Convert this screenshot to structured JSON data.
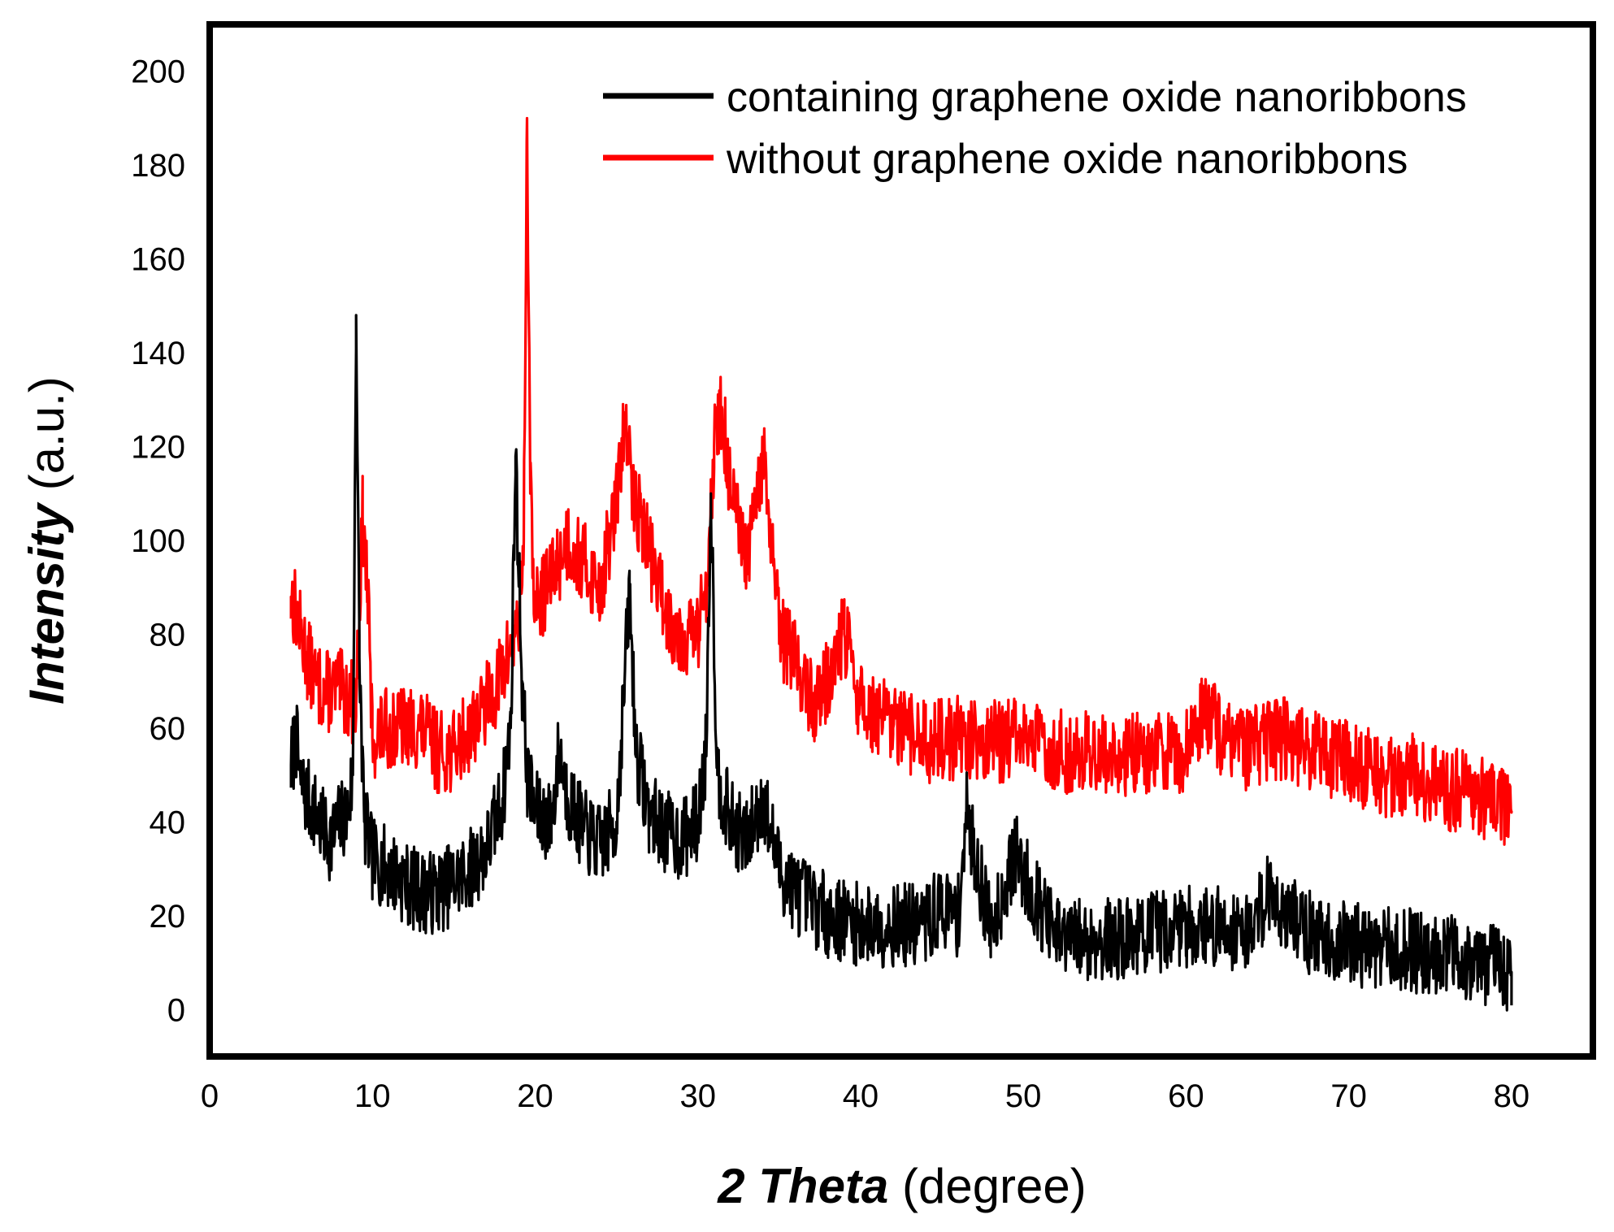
{
  "chart_data": {
    "type": "line",
    "xlabel": {
      "emphasis": "2 Theta",
      "rest": "(degree)"
    },
    "ylabel": {
      "emphasis": "Intensity",
      "rest": "(a.u.)"
    },
    "xlim": [
      0,
      85
    ],
    "ylim": [
      -10,
      210
    ],
    "xticks": [
      0,
      10,
      20,
      30,
      40,
      50,
      60,
      70,
      80
    ],
    "yticks": [
      0,
      20,
      40,
      60,
      80,
      100,
      120,
      140,
      160,
      180,
      200
    ],
    "grid": false,
    "legend_position": "top-right",
    "series": [
      {
        "name": "containing graphene oxide nanoribbons",
        "color": "#000000",
        "x": [
          5,
          5.3,
          5.6,
          6,
          6.5,
          7,
          7.5,
          8,
          8.5,
          8.8,
          9,
          9.2,
          9.5,
          10,
          11,
          12,
          13,
          14,
          15,
          16,
          17,
          18,
          18.5,
          18.8,
          19.2,
          19.5,
          20,
          21,
          21.5,
          22,
          23,
          24,
          25,
          25.5,
          25.8,
          26.2,
          27,
          28,
          29,
          30,
          30.5,
          30.8,
          31.2,
          32,
          33,
          34,
          35,
          36,
          38,
          40,
          42,
          44,
          45,
          46,
          46.5,
          48,
          49.5,
          52,
          56,
          60,
          64,
          65,
          68,
          72,
          76,
          80
        ],
        "y": [
          52,
          58,
          48,
          45,
          42,
          38,
          36,
          40,
          42,
          50,
          148,
          75,
          40,
          32,
          30,
          27,
          25,
          25,
          27,
          30,
          34,
          45,
          60,
          118,
          70,
          50,
          42,
          40,
          56,
          45,
          38,
          35,
          40,
          70,
          90,
          55,
          42,
          38,
          36,
          40,
          55,
          110,
          50,
          40,
          36,
          45,
          30,
          25,
          20,
          18,
          18,
          18,
          22,
          20,
          42,
          17,
          33,
          15,
          15,
          18,
          17,
          25,
          15,
          13,
          12,
          8
        ]
      },
      {
        "name": "without graphene oxide nanoribbons",
        "color": "#ff0000",
        "x": [
          5,
          5.3,
          5.6,
          6,
          6.5,
          7,
          8,
          9,
          9.4,
          9.7,
          10,
          11,
          12,
          13,
          14,
          15,
          16,
          17,
          18,
          19,
          19.3,
          19.5,
          19.7,
          20,
          21,
          22,
          23,
          24,
          25,
          25.5,
          26,
          26.5,
          27,
          28,
          29,
          30,
          30.5,
          31,
          31.5,
          32,
          33,
          33.5,
          34,
          34.5,
          35,
          36,
          37,
          38,
          39,
          40,
          42,
          44,
          46,
          48,
          50,
          52,
          54,
          56,
          58,
          60,
          61,
          63,
          66,
          68,
          70,
          72,
          74,
          76,
          78,
          80
        ],
        "y": [
          88,
          85,
          80,
          75,
          70,
          68,
          68,
          65,
          105,
          90,
          58,
          60,
          60,
          60,
          55,
          55,
          60,
          65,
          72,
          82,
          100,
          190,
          110,
          85,
          92,
          100,
          95,
          90,
          108,
          125,
          110,
          105,
          98,
          85,
          80,
          80,
          90,
          120,
          128,
          110,
          95,
          105,
          118,
          100,
          80,
          75,
          65,
          70,
          80,
          65,
          60,
          57,
          58,
          57,
          58,
          55,
          55,
          54,
          55,
          55,
          64,
          55,
          58,
          55,
          53,
          50,
          50,
          47,
          46,
          42
        ]
      }
    ]
  }
}
